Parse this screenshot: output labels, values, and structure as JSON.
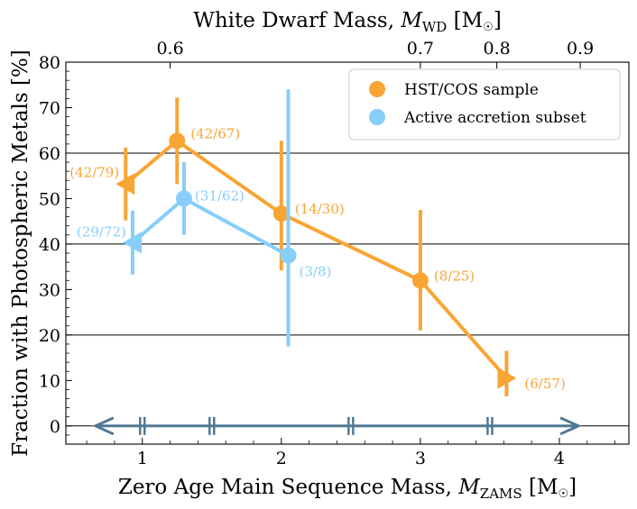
{
  "chart_data": {
    "type": "scatter",
    "title": "",
    "xlabel": "Zero Age Main Sequence Mass, M_ZAMS [M☉]",
    "xlabel_parts": {
      "main": "Zero Age Main Sequence Mass, ",
      "sym": "M",
      "sub": "ZAMS",
      "unit_open": " [M",
      "unit_sun": "☉",
      "unit_close": "]"
    },
    "ylabel": "Fraction with Photospheric Metals [%]",
    "top_xlabel": "White Dwarf Mass, M_WD [M☉]",
    "top_xlabel_parts": {
      "main": "White Dwarf Mass, ",
      "sym": "M",
      "sub": "WD",
      "unit_open": " [M",
      "unit_sun": "☉",
      "unit_close": "]"
    },
    "xlim": [
      0.45,
      4.5
    ],
    "ylim": [
      -4,
      80
    ],
    "x_ticks": [
      {
        "value": 1,
        "label": "1"
      },
      {
        "value": 2,
        "label": "2"
      },
      {
        "value": 3,
        "label": "3"
      },
      {
        "value": 4,
        "label": "4"
      }
    ],
    "y_ticks": [
      {
        "value": 0,
        "label": "0"
      },
      {
        "value": 10,
        "label": "10"
      },
      {
        "value": 20,
        "label": "20"
      },
      {
        "value": 30,
        "label": "30"
      },
      {
        "value": 40,
        "label": "40"
      },
      {
        "value": 50,
        "label": "50"
      },
      {
        "value": 60,
        "label": "60"
      },
      {
        "value": 70,
        "label": "70"
      },
      {
        "value": 80,
        "label": "80"
      }
    ],
    "top_ticks": [
      {
        "value": 1.2,
        "label": "0.6"
      },
      {
        "value": 3.0,
        "label": "0.7"
      },
      {
        "value": 3.55,
        "label": "0.8"
      },
      {
        "value": 4.15,
        "label": "0.9"
      }
    ],
    "horizontal_lines": [
      20,
      40,
      60
    ],
    "zero_line": 0,
    "bin_arrow": {
      "x_start": 0.65,
      "x_end": 4.15,
      "y": 0,
      "bin_edges": [
        1.0,
        1.5,
        2.5,
        3.5
      ]
    },
    "series": [
      {
        "name": "HST/COS sample",
        "color": "#F8A534",
        "points": [
          {
            "x": 0.88,
            "y": 53.2,
            "err_lo": 8.0,
            "err_hi": 8.0,
            "marker": "left",
            "label": "(42/79)"
          },
          {
            "x": 1.25,
            "y": 62.7,
            "err_lo": 9.5,
            "err_hi": 9.5,
            "marker": "circle",
            "label": "(42/67)"
          },
          {
            "x": 2.0,
            "y": 46.7,
            "err_lo": 12.5,
            "err_hi": 16.0,
            "marker": "circle",
            "label": "(14/30)"
          },
          {
            "x": 3.0,
            "y": 32.0,
            "err_lo": 11.0,
            "err_hi": 15.5,
            "marker": "circle",
            "label": "(8/25)"
          },
          {
            "x": 3.62,
            "y": 10.5,
            "err_lo": 4.0,
            "err_hi": 6.0,
            "marker": "right",
            "label": "(6/57)"
          }
        ]
      },
      {
        "name": "Active accretion subset",
        "color": "#87CEFA",
        "points": [
          {
            "x": 0.93,
            "y": 40.3,
            "err_lo": 7.0,
            "err_hi": 7.0,
            "marker": "left",
            "label": "(29/72)"
          },
          {
            "x": 1.3,
            "y": 50.0,
            "err_lo": 8.0,
            "err_hi": 8.0,
            "marker": "circle",
            "label": "(31/62)"
          },
          {
            "x": 2.05,
            "y": 37.5,
            "err_lo": 20.0,
            "err_hi": 36.5,
            "marker": "circle",
            "label": "(3/8)"
          }
        ]
      }
    ],
    "legend": {
      "placement": "top-right",
      "entries": [
        "HST/COS sample",
        "Active accretion subset"
      ]
    }
  }
}
